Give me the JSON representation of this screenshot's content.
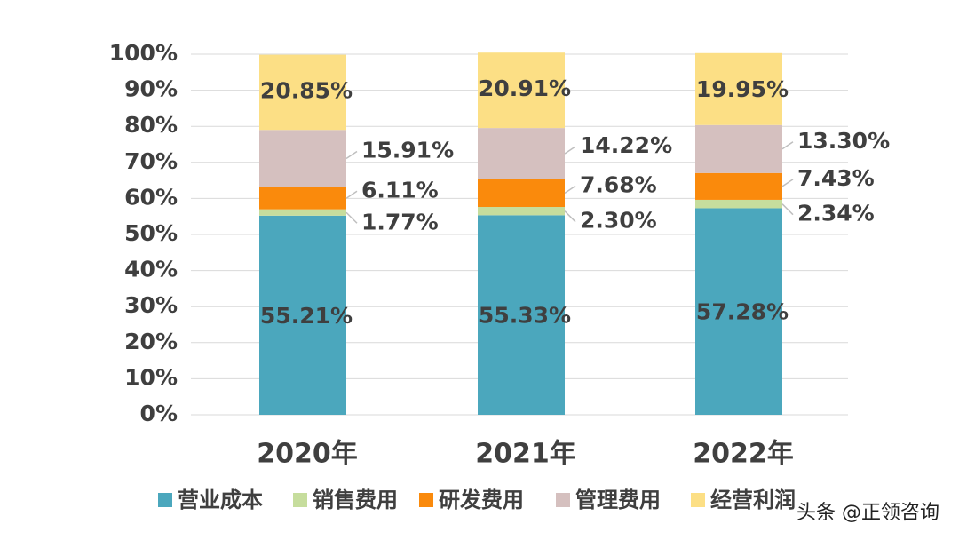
{
  "chart_data": {
    "type": "stacked-bar",
    "categories": [
      "2020年",
      "2021年",
      "2022年"
    ],
    "series": [
      {
        "name": "营业成本",
        "color": "#4ba7bd",
        "values": [
          55.21,
          55.33,
          57.28
        ],
        "value_labels": [
          "55.21%",
          "55.33%",
          "57.28%"
        ]
      },
      {
        "name": "销售费用",
        "color": "#c6dd9d",
        "values": [
          1.77,
          2.3,
          2.34
        ],
        "value_labels": [
          "1.77%",
          "2.30%",
          "2.34%"
        ]
      },
      {
        "name": "研发费用",
        "color": "#fa8a0c",
        "values": [
          6.11,
          7.68,
          7.43
        ],
        "value_labels": [
          "6.11%",
          "7.68%",
          "7.43%"
        ]
      },
      {
        "name": "管理费用",
        "color": "#d5c0bf",
        "values": [
          15.91,
          14.22,
          13.3
        ],
        "value_labels": [
          "15.91%",
          "14.22%",
          "13.30%"
        ]
      },
      {
        "name": "经营利润",
        "color": "#fcdf85",
        "values": [
          20.85,
          20.91,
          19.95
        ],
        "value_labels": [
          "20.85%",
          "20.91%",
          "19.95%"
        ]
      }
    ],
    "ylim": [
      0,
      100
    ],
    "yticks": [
      {
        "value": 0,
        "label": "0%"
      },
      {
        "value": 10,
        "label": "10%"
      },
      {
        "value": 20,
        "label": "20%"
      },
      {
        "value": 30,
        "label": "30%"
      },
      {
        "value": 40,
        "label": "40%"
      },
      {
        "value": 50,
        "label": "50%"
      },
      {
        "value": 60,
        "label": "60%"
      },
      {
        "value": 70,
        "label": "70%"
      },
      {
        "value": 80,
        "label": "80%"
      },
      {
        "value": 90,
        "label": "90%"
      },
      {
        "value": 100,
        "label": "100%"
      }
    ],
    "grid": true,
    "legend": "bottom",
    "watermark": "头条 @正领咨询"
  }
}
